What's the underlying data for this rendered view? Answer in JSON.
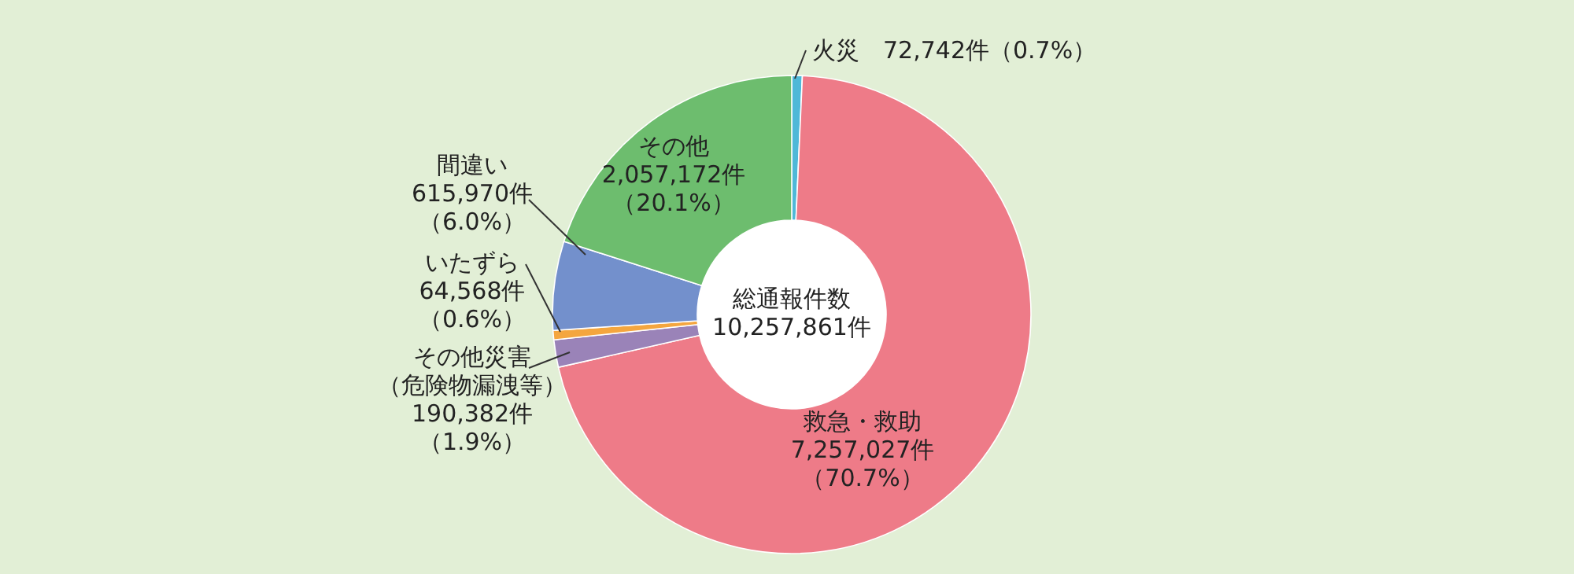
{
  "chart_data": {
    "type": "donut",
    "categories": [
      "火災",
      "救急・救助",
      "その他災害（危険物漏洩等）",
      "いたずら",
      "間違い",
      "その他"
    ],
    "values": [
      72742,
      7257027,
      190382,
      64568,
      615970,
      2057172
    ],
    "colors": [
      "#4fb8d8",
      "#ee7b88",
      "#9a83b8",
      "#f4a63f",
      "#7390cc",
      "#6dbd6e"
    ],
    "value_labels": [
      "72,742件（0.7%）",
      "7,257,027件（70.7%）",
      "190,382件（1.9%）",
      "64,568件（0.6%）",
      "615,970件（6.0%）",
      "2,057,172件（20.1%）"
    ],
    "annotations": [
      "総通報件数\n10,257,861件"
    ]
  }
}
